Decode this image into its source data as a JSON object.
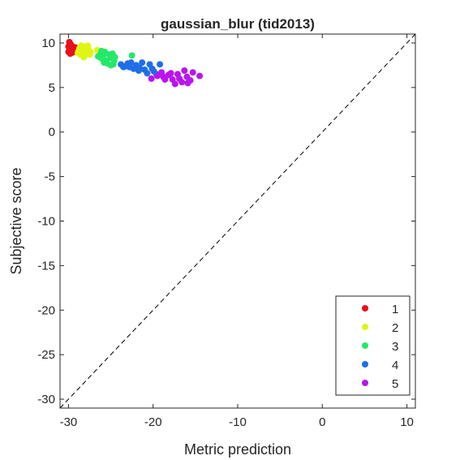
{
  "chart_data": {
    "type": "scatter",
    "title": "gaussian_blur (tid2013)",
    "xlabel": "Metric prediction",
    "ylabel": "Subjective score",
    "xlim": [
      -31,
      11
    ],
    "ylim": [
      -31,
      11
    ],
    "xticks": [
      -30,
      -20,
      -10,
      0,
      10
    ],
    "yticks": [
      10,
      5,
      0,
      -5,
      -10,
      -15,
      -20,
      -25,
      -30
    ],
    "grid": false,
    "reference_line": {
      "style": "dashed",
      "from": [
        -31,
        -31
      ],
      "to": [
        11,
        11
      ]
    },
    "legend_position": "bottom-right",
    "series": [
      {
        "name": "1",
        "color": "#e8101a",
        "points": [
          [
            -29.9,
            10.1
          ],
          [
            -29.7,
            9.8
          ],
          [
            -29.9,
            9.5
          ],
          [
            -29.6,
            9.3
          ],
          [
            -30.0,
            9.0
          ],
          [
            -29.8,
            8.8
          ],
          [
            -29.5,
            9.6
          ],
          [
            -29.7,
            9.1
          ],
          [
            -29.4,
            9.0
          ],
          [
            -29.9,
            9.7
          ],
          [
            -29.6,
            8.9
          ],
          [
            -29.3,
            9.4
          ],
          [
            -29.8,
            9.9
          ],
          [
            -29.5,
            9.2
          ],
          [
            -29.2,
            9.5
          ],
          [
            -29.7,
            9.4
          ],
          [
            -30.0,
            9.6
          ]
        ]
      },
      {
        "name": "2",
        "color": "#dff514",
        "points": [
          [
            -28.5,
            9.7
          ],
          [
            -28.2,
            9.5
          ],
          [
            -27.9,
            9.3
          ],
          [
            -28.8,
            9.1
          ],
          [
            -28.4,
            8.9
          ],
          [
            -27.8,
            8.8
          ],
          [
            -28.6,
            8.7
          ],
          [
            -28.0,
            9.6
          ],
          [
            -28.3,
            9.0
          ],
          [
            -27.6,
            9.2
          ],
          [
            -28.1,
            8.6
          ],
          [
            -27.5,
            8.7
          ],
          [
            -28.7,
            9.4
          ],
          [
            -26.6,
            9.2
          ],
          [
            -27.7,
            9.7
          ],
          [
            -28.9,
            8.9
          ],
          [
            -27.4,
            9.0
          ],
          [
            -28.2,
            8.4
          ]
        ]
      },
      {
        "name": "3",
        "color": "#25e869",
        "points": [
          [
            -26.5,
            8.5
          ],
          [
            -25.7,
            9.0
          ],
          [
            -25.2,
            8.7
          ],
          [
            -26.0,
            8.2
          ],
          [
            -25.5,
            8.0
          ],
          [
            -24.9,
            8.3
          ],
          [
            -26.2,
            8.8
          ],
          [
            -25.8,
            7.8
          ],
          [
            -24.6,
            8.0
          ],
          [
            -25.1,
            8.5
          ],
          [
            -24.7,
            7.6
          ],
          [
            -25.9,
            8.6
          ],
          [
            -26.3,
            8.4
          ],
          [
            -24.5,
            8.4
          ],
          [
            -25.4,
            7.7
          ],
          [
            -23.6,
            7.4
          ],
          [
            -22.5,
            8.6
          ],
          [
            -25.0,
            7.5
          ],
          [
            -26.1,
            9.1
          ],
          [
            -24.8,
            8.8
          ]
        ]
      },
      {
        "name": "4",
        "color": "#1f6ee8",
        "points": [
          [
            -23.8,
            7.6
          ],
          [
            -23.2,
            7.4
          ],
          [
            -22.6,
            7.8
          ],
          [
            -22.0,
            7.5
          ],
          [
            -21.6,
            7.2
          ],
          [
            -21.0,
            7.0
          ],
          [
            -20.4,
            7.6
          ],
          [
            -19.9,
            6.8
          ],
          [
            -19.2,
            7.6
          ],
          [
            -21.3,
            7.8
          ],
          [
            -22.3,
            7.1
          ],
          [
            -20.7,
            6.6
          ],
          [
            -23.5,
            7.3
          ],
          [
            -20.1,
            7.1
          ],
          [
            -22.8,
            7.3
          ],
          [
            -21.7,
            6.9
          ],
          [
            -19.6,
            6.5
          ],
          [
            -23.0,
            7.7
          ]
        ]
      },
      {
        "name": "5",
        "color": "#b815ee",
        "points": [
          [
            -20.2,
            6.0
          ],
          [
            -19.5,
            6.3
          ],
          [
            -18.8,
            6.2
          ],
          [
            -18.2,
            6.4
          ],
          [
            -17.7,
            5.9
          ],
          [
            -17.1,
            6.5
          ],
          [
            -16.6,
            5.6
          ],
          [
            -16.0,
            6.2
          ],
          [
            -15.6,
            5.8
          ],
          [
            -14.5,
            6.3
          ],
          [
            -17.4,
            5.4
          ],
          [
            -18.6,
            5.9
          ],
          [
            -16.3,
            6.9
          ],
          [
            -15.3,
            6.7
          ],
          [
            -19.0,
            6.7
          ],
          [
            -16.9,
            6.0
          ],
          [
            -17.9,
            6.6
          ],
          [
            -15.9,
            5.5
          ]
        ]
      }
    ]
  }
}
